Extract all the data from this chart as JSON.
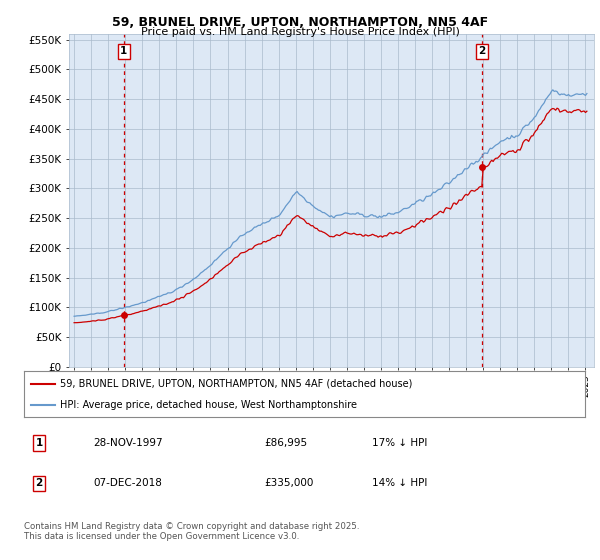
{
  "title1": "59, BRUNEL DRIVE, UPTON, NORTHAMPTON, NN5 4AF",
  "title2": "Price paid vs. HM Land Registry's House Price Index (HPI)",
  "ylabel_ticks": [
    "£0",
    "£50K",
    "£100K",
    "£150K",
    "£200K",
    "£250K",
    "£300K",
    "£350K",
    "£400K",
    "£450K",
    "£500K",
    "£550K"
  ],
  "ytick_vals": [
    0,
    50000,
    100000,
    150000,
    200000,
    250000,
    300000,
    350000,
    400000,
    450000,
    500000,
    550000
  ],
  "purchase1_date": "28-NOV-1997",
  "purchase1_price": 86995,
  "purchase1_label": "17% ↓ HPI",
  "purchase2_date": "07-DEC-2018",
  "purchase2_price": 335000,
  "purchase2_label": "14% ↓ HPI",
  "legend1": "59, BRUNEL DRIVE, UPTON, NORTHAMPTON, NN5 4AF (detached house)",
  "legend2": "HPI: Average price, detached house, West Northamptonshire",
  "footer": "Contains HM Land Registry data © Crown copyright and database right 2025.\nThis data is licensed under the Open Government Licence v3.0.",
  "price_color": "#cc0000",
  "hpi_color": "#6699cc",
  "vline_color": "#cc0000",
  "bg_color": "#ffffff",
  "chart_bg": "#dde8f5",
  "purchase1_year": 1997.917,
  "purchase2_year": 2018.917
}
